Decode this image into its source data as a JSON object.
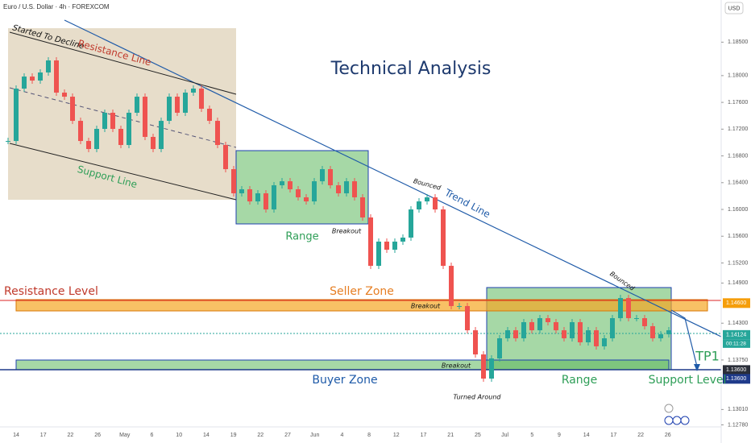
{
  "chart_data": {
    "type": "candle-path",
    "title": "Euro / U.S. Dollar · 4h · FOREXCOM",
    "currency": "USD",
    "headline": "Technical Analysis",
    "series": [
      {
        "name": "EURUSD",
        "up_color": "#26a69a",
        "down_color": "#ef5350",
        "values": [
          1.17023,
          1.17806,
          1.17986,
          1.17926,
          1.18047,
          1.18227,
          1.17746,
          1.17685,
          1.17324,
          1.17023,
          1.16903,
          1.17204,
          1.17445,
          1.17204,
          1.16963,
          1.17445,
          1.17685,
          1.17084,
          1.16903,
          1.17324,
          1.17685,
          1.17445,
          1.17746,
          1.17806,
          1.17505,
          1.17324,
          1.16963,
          1.16602,
          1.16241,
          1.16301,
          1.1612,
          1.16241,
          1.16,
          1.16361,
          1.16421,
          1.16301,
          1.16181,
          1.1612,
          1.16421,
          1.16602,
          1.16361,
          1.16241,
          1.16421,
          1.16181,
          1.1588,
          1.15157,
          1.15519,
          1.15398,
          1.15519,
          1.15579,
          1.16,
          1.1612,
          1.16181,
          1.16,
          1.15157,
          1.14556,
          1.14556,
          1.14194,
          1.13833,
          1.13472,
          1.13773,
          1.14074,
          1.14194,
          1.14074,
          1.14315,
          1.14194,
          1.14375,
          1.14315,
          1.14194,
          1.14074,
          1.14315,
          1.14014,
          1.14194,
          1.13954,
          1.14074,
          1.14375,
          1.14676,
          1.14375,
          1.14375,
          1.14255,
          1.14074,
          1.14134,
          1.14194
        ]
      }
    ],
    "ylim": [
      1.1275,
      1.1913
    ],
    "yticks": [
      {
        "value": 1.185,
        "label": "1.18500"
      },
      {
        "value": 1.18,
        "label": "1.18000"
      },
      {
        "value": 1.176,
        "label": "1.17600"
      },
      {
        "value": 1.172,
        "label": "1.17200"
      },
      {
        "value": 1.168,
        "label": "1.16800"
      },
      {
        "value": 1.164,
        "label": "1.16400"
      },
      {
        "value": 1.16,
        "label": "1.16000"
      },
      {
        "value": 1.156,
        "label": "1.15600"
      },
      {
        "value": 1.152,
        "label": "1.15200"
      },
      {
        "value": 1.149,
        "label": "1.14900"
      },
      {
        "value": 1.143,
        "label": "1.14300"
      },
      {
        "value": 1.1375,
        "label": "1.13750"
      },
      {
        "value": 1.1301,
        "label": "1.13010"
      },
      {
        "value": 1.1278,
        "label": "1.12780"
      }
    ],
    "price_tags": [
      {
        "value": 1.146,
        "label": "1.14600",
        "color": "#f59e0b"
      },
      {
        "value": 1.14124,
        "label": "1.14124",
        "color": "#26a69a"
      },
      {
        "value": 1.136,
        "label": "1.13600",
        "color": "#2a2e39"
      },
      {
        "value": 1.136,
        "label": "1.13600",
        "color": "#1e3a8a"
      }
    ],
    "countdown": "00:11:28",
    "xticks": [
      "14",
      "17",
      "22",
      "26",
      "May",
      "6",
      "10",
      "14",
      "19",
      "22",
      "27",
      "Jun",
      "4",
      "8",
      "12",
      "17",
      "21",
      "25",
      "Jul",
      "5",
      "9",
      "14",
      "17",
      "22",
      "26"
    ],
    "annotations": [
      "Started To Decline",
      "Resistance Line",
      "Support Line",
      "Range",
      "Breakout",
      "Bounced",
      "Trend Line",
      "Resistance Level",
      "Seller Zone",
      "Breakout",
      "Buyer Zone",
      "Breakout",
      "Turned Around",
      "Range",
      "Bounced",
      "TP1",
      "Support Level"
    ]
  }
}
